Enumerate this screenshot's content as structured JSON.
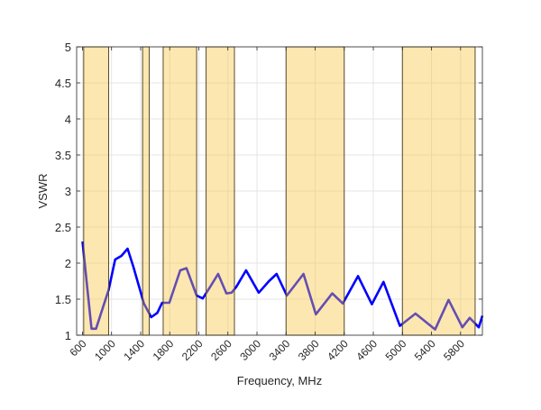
{
  "chart_data": {
    "type": "line",
    "title": "",
    "xlabel": "Frequency, MHz",
    "ylabel": "VSWR",
    "xlim": [
      520,
      6100
    ],
    "ylim": [
      1,
      5
    ],
    "grid": true,
    "xticks": [
      600,
      1000,
      1400,
      1800,
      2200,
      2600,
      3000,
      3400,
      3800,
      4200,
      4600,
      5000,
      5400,
      5800
    ],
    "yticks": [
      1,
      1.5,
      2,
      2.5,
      3,
      3.5,
      4,
      4.5,
      5
    ],
    "ytick_labels": [
      "1",
      "1.5",
      "2",
      "2.5",
      "3",
      "3.5",
      "4",
      "4.5",
      "5"
    ],
    "shaded_bands": [
      [
        617,
        960
      ],
      [
        1427,
        1518
      ],
      [
        1710,
        2170
      ],
      [
        2300,
        2690
      ],
      [
        3400,
        4200
      ],
      [
        5000,
        6000
      ]
    ],
    "series": [
      {
        "color": "#0000ff",
        "x": [
          600,
          662,
          724,
          787,
          960,
          1050,
          1135,
          1220,
          1300,
          1445,
          1545,
          1630,
          1695,
          1795,
          1945,
          2030,
          2170,
          2255,
          2355,
          2465,
          2580,
          2650,
          2715,
          2850,
          3025,
          3165,
          3270,
          3410,
          3640,
          3810,
          4035,
          4180,
          4390,
          4580,
          4740,
          4965,
          5180,
          5450,
          5635,
          5825,
          5925,
          6050,
          6100
        ],
        "y": [
          2.3,
          1.69,
          1.09,
          1.09,
          1.63,
          2.05,
          2.1,
          2.2,
          1.95,
          1.44,
          1.25,
          1.31,
          1.45,
          1.45,
          1.9,
          1.93,
          1.55,
          1.51,
          1.67,
          1.85,
          1.58,
          1.59,
          1.67,
          1.9,
          1.59,
          1.75,
          1.85,
          1.55,
          1.85,
          1.29,
          1.58,
          1.44,
          1.82,
          1.43,
          1.74,
          1.13,
          1.3,
          1.08,
          1.49,
          1.11,
          1.24,
          1.11,
          1.27
        ]
      }
    ],
    "band_color": "#fac33c",
    "band_edge_color": "#5a4a2a"
  }
}
